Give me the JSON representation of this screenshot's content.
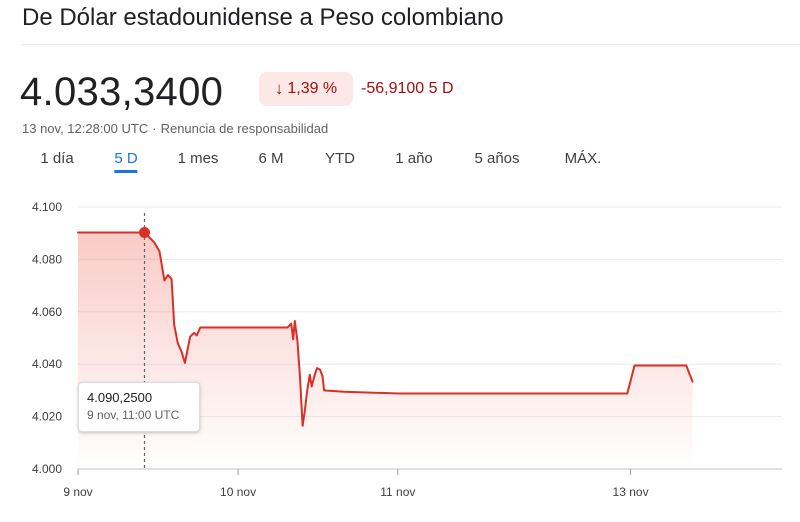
{
  "header": {
    "title": "De Dólar estadounidense a Peso colombiano",
    "price": "4.033,3400",
    "change_percent": "1,39 %",
    "change_arrow": "↓",
    "change_value": "-56,9100 5 D",
    "timestamp": "13 nov, 12:28:00 UTC",
    "separator": "·",
    "disclaimer": "Renuncia de responsabilidad"
  },
  "tabs": [
    {
      "label": "1 día"
    },
    {
      "label": "5 D",
      "active": true
    },
    {
      "label": "1 mes"
    },
    {
      "label": "6 M"
    },
    {
      "label": "YTD"
    },
    {
      "label": "1 año"
    },
    {
      "label": "5 años"
    },
    {
      "label": "MÁX."
    }
  ],
  "tooltip": {
    "value": "4.090,2500",
    "time": "9 nov, 11:00 UTC"
  },
  "colors": {
    "line": "#d93025",
    "fill": "#f28b82",
    "negative_text": "#a50e0e",
    "negative_bg": "#fce8e6",
    "accent": "#1a73e8"
  },
  "chart_data": {
    "type": "area",
    "title": "",
    "xlabel": "",
    "ylabel": "",
    "ylim": [
      4000,
      4100
    ],
    "yticks": [
      4000,
      4020,
      4040,
      4060,
      4080,
      4100
    ],
    "ytick_labels": [
      "4.000",
      "4.020",
      "4.040",
      "4.060",
      "4.080",
      "4.100"
    ],
    "xticks": [
      {
        "label": "9 nov",
        "t": 0
      },
      {
        "label": "10 nov",
        "t": 0.491
      },
      {
        "label": "11 nov",
        "t": 0.981
      },
      {
        "label": "13 nov",
        "t": 1.695
      }
    ],
    "grid": true,
    "highlight": {
      "t": 0.204,
      "value": 4090.25
    },
    "series": [
      {
        "points": [
          {
            "t": 0.0,
            "value": 4090.25
          },
          {
            "t": 0.204,
            "value": 4090.25
          },
          {
            "t": 0.234,
            "value": 4086.5
          },
          {
            "t": 0.25,
            "value": 4083.0
          },
          {
            "t": 0.265,
            "value": 4072.0
          },
          {
            "t": 0.276,
            "value": 4074.0
          },
          {
            "t": 0.287,
            "value": 4072.5
          },
          {
            "t": 0.295,
            "value": 4055.0
          },
          {
            "t": 0.306,
            "value": 4048.0
          },
          {
            "t": 0.317,
            "value": 4045.0
          },
          {
            "t": 0.328,
            "value": 4040.5
          },
          {
            "t": 0.344,
            "value": 4050.5
          },
          {
            "t": 0.356,
            "value": 4052.0
          },
          {
            "t": 0.364,
            "value": 4051.0
          },
          {
            "t": 0.375,
            "value": 4054.0
          },
          {
            "t": 0.39,
            "value": 4054.0
          },
          {
            "t": 0.643,
            "value": 4054.0
          },
          {
            "t": 0.654,
            "value": 4055.5
          },
          {
            "t": 0.66,
            "value": 4049.5
          },
          {
            "t": 0.665,
            "value": 4056.5
          },
          {
            "t": 0.673,
            "value": 4049.0
          },
          {
            "t": 0.681,
            "value": 4035.0
          },
          {
            "t": 0.689,
            "value": 4016.5
          },
          {
            "t": 0.696,
            "value": 4022.5
          },
          {
            "t": 0.703,
            "value": 4030.0
          },
          {
            "t": 0.711,
            "value": 4036.0
          },
          {
            "t": 0.717,
            "value": 4031.5
          },
          {
            "t": 0.725,
            "value": 4035.5
          },
          {
            "t": 0.733,
            "value": 4038.5
          },
          {
            "t": 0.742,
            "value": 4038.0
          },
          {
            "t": 0.75,
            "value": 4035.5
          },
          {
            "t": 0.755,
            "value": 4030.0
          },
          {
            "t": 0.815,
            "value": 4029.5
          },
          {
            "t": 0.983,
            "value": 4028.8
          },
          {
            "t": 1.685,
            "value": 4028.8
          },
          {
            "t": 1.707,
            "value": 4039.5
          },
          {
            "t": 1.866,
            "value": 4039.5
          },
          {
            "t": 1.885,
            "value": 4033.34
          }
        ]
      }
    ]
  }
}
